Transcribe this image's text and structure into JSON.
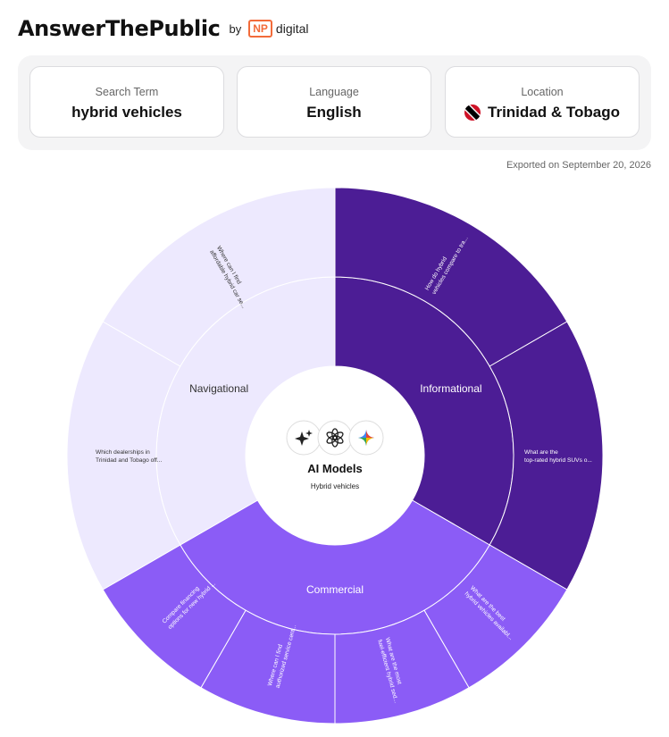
{
  "brand": {
    "name": "AnswerThePublic",
    "by": "by",
    "np": "NP",
    "digital": "digital"
  },
  "cards": {
    "search_term": {
      "label": "Search Term",
      "value": "hybrid vehicles"
    },
    "language": {
      "label": "Language",
      "value": "English"
    },
    "location": {
      "label": "Location",
      "value": "Trinidad & Tobago"
    }
  },
  "exported": "Exported on September 20, 2026",
  "center": {
    "title": "AI Models",
    "subtitle": "Hybrid vehicles",
    "icons": [
      "sparkle-icon",
      "openai-icon",
      "gemini-icon"
    ]
  },
  "colors": {
    "informational": "#4c1d95",
    "commercial": "#8b5cf6",
    "navigational": "#ede9fe",
    "inner_commercial_text": "#ffffff",
    "nav_text": "#333333"
  },
  "categories": [
    {
      "name": "Informational",
      "theme": "informational",
      "start": 0,
      "end": 120,
      "leaves": [
        {
          "text": [
            "How do hybrid",
            "vehicles compare to tra..."
          ],
          "start": 0,
          "end": 60
        },
        {
          "text": [
            "What are the",
            "top-rated hybrid SUVs o..."
          ],
          "start": 60,
          "end": 120
        }
      ]
    },
    {
      "name": "Commercial",
      "theme": "commercial",
      "start": 120,
      "end": 240,
      "leaves": [
        {
          "text": [
            "What are the best",
            "hybrid vehicles availabl..."
          ],
          "start": 120,
          "end": 150
        },
        {
          "text": [
            "What are the most",
            "fuel-efficient hybrid sed..."
          ],
          "start": 150,
          "end": 180
        },
        {
          "text": [
            "Where can I find",
            "authorized service cent..."
          ],
          "start": 180,
          "end": 210
        },
        {
          "text": [
            "Compare financing",
            "options for new hybrid ..."
          ],
          "start": 210,
          "end": 240
        }
      ]
    },
    {
      "name": "Navigational",
      "theme": "navigational",
      "start": 240,
      "end": 360,
      "leaves": [
        {
          "text": [
            "Which dealerships in",
            "Trinidad and Tobago off..."
          ],
          "start": 240,
          "end": 300
        },
        {
          "text": [
            "Where can I find",
            "affordable hybrid car se..."
          ],
          "start": 300,
          "end": 360
        }
      ]
    }
  ]
}
